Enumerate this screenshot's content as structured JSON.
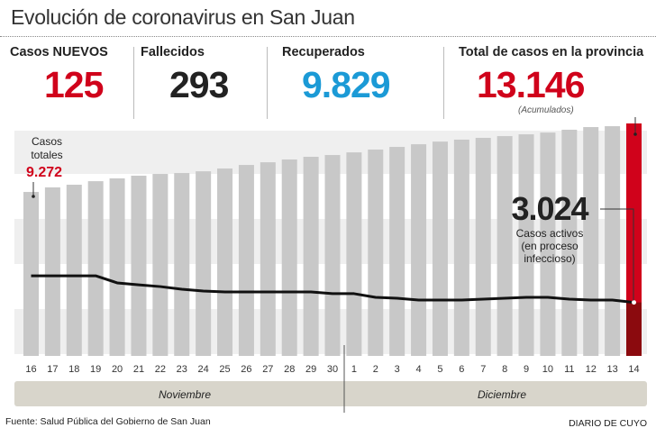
{
  "title": "Evolución de coronavirus en San Juan",
  "stats": [
    {
      "label": "Casos NUEVOS",
      "value": "125",
      "color": "#d0021b"
    },
    {
      "label": "Fallecidos",
      "value": "293",
      "color": "#222222"
    },
    {
      "label": "Recuperados",
      "value": "9.829",
      "color": "#1b9ad6"
    },
    {
      "label": "Total de casos en la provincia",
      "value": "13.146",
      "color": "#d0021b"
    }
  ],
  "total_note": "(Acumulados)",
  "chart_data": {
    "type": "bar",
    "categories": [
      "16",
      "17",
      "18",
      "19",
      "20",
      "21",
      "22",
      "23",
      "24",
      "25",
      "26",
      "27",
      "28",
      "29",
      "30",
      "1",
      "2",
      "3",
      "4",
      "5",
      "6",
      "7",
      "8",
      "9",
      "10",
      "11",
      "12",
      "13",
      "14"
    ],
    "months": [
      "Noviembre",
      "Diciembre"
    ],
    "series": [
      {
        "name": "Casos totales",
        "type": "bar",
        "color": "#c8c8c8",
        "highlight_color": "#d0021b",
        "values": [
          9272,
          9530,
          9680,
          9880,
          10040,
          10190,
          10290,
          10340,
          10440,
          10600,
          10800,
          10950,
          11110,
          11260,
          11360,
          11510,
          11670,
          11820,
          11970,
          12120,
          12230,
          12330,
          12430,
          12530,
          12630,
          12790,
          12940,
          12990,
          13146
        ]
      },
      {
        "name": "Casos activos (en proceso infeccioso)",
        "type": "line",
        "color": "#111111",
        "values": [
          4530,
          4530,
          4530,
          4530,
          4130,
          4020,
          3920,
          3770,
          3670,
          3620,
          3620,
          3620,
          3620,
          3620,
          3520,
          3520,
          3310,
          3260,
          3160,
          3160,
          3160,
          3210,
          3260,
          3310,
          3310,
          3210,
          3160,
          3160,
          3024
        ]
      }
    ],
    "ylim": [
      0,
      13146
    ],
    "annotations": {
      "first_label": "Casos",
      "first_label2": "totales",
      "first_value": "9.272",
      "last_value": "3.024",
      "last_label1": "Casos activos",
      "last_label2": "(en proceso",
      "last_label3": "infeccioso)"
    }
  },
  "footer": {
    "source": "Fuente: Salud Pública del Gobierno de San Juan",
    "brand": "DIARIO DE CUYO"
  }
}
